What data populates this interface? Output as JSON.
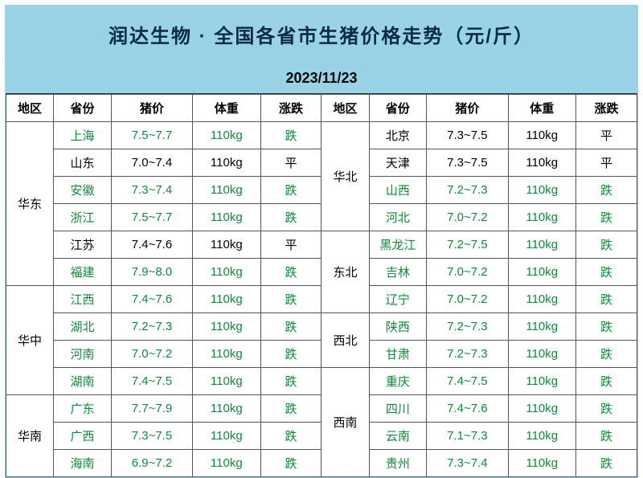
{
  "title": "润达生物 · 全国各省市生猪价格走势（元/斤）",
  "date": "2023/11/23",
  "headers": {
    "region": "地区",
    "province": "省份",
    "price": "猪价",
    "weight": "体重",
    "trend": "涨跌"
  },
  "colors": {
    "header_bg": "#9bd3e6",
    "border": "#555555",
    "fall": "#0d8a3a",
    "flat": "#000000",
    "title_text": "#0a2a4a",
    "cell_bg": "#ffffff"
  },
  "fontsize": {
    "title": 24,
    "date": 18,
    "cell": 15
  },
  "leftGroups": [
    {
      "region": "华东",
      "rows": [
        {
          "province": "上海",
          "price": "7.5~7.7",
          "weight": "110kg",
          "trend": "跌",
          "style": "fall"
        },
        {
          "province": "山东",
          "price": "7.0~7.4",
          "weight": "110kg",
          "trend": "平",
          "style": "flat"
        },
        {
          "province": "安徽",
          "price": "7.3~7.4",
          "weight": "110kg",
          "trend": "跌",
          "style": "fall"
        },
        {
          "province": "浙江",
          "price": "7.5~7.7",
          "weight": "110kg",
          "trend": "跌",
          "style": "fall"
        },
        {
          "province": "江苏",
          "price": "7.4~7.6",
          "weight": "110kg",
          "trend": "平",
          "style": "flat"
        },
        {
          "province": "福建",
          "price": "7.9~8.0",
          "weight": "110kg",
          "trend": "跌",
          "style": "fall"
        }
      ]
    },
    {
      "region": "华中",
      "rows": [
        {
          "province": "江西",
          "price": "7.4~7.6",
          "weight": "110kg",
          "trend": "跌",
          "style": "fall"
        },
        {
          "province": "湖北",
          "price": "7.2~7.3",
          "weight": "110kg",
          "trend": "跌",
          "style": "fall"
        },
        {
          "province": "河南",
          "price": "7.0~7.2",
          "weight": "110kg",
          "trend": "跌",
          "style": "fall"
        },
        {
          "province": "湖南",
          "price": "7.4~7.5",
          "weight": "110kg",
          "trend": "跌",
          "style": "fall"
        }
      ]
    },
    {
      "region": "华南",
      "rows": [
        {
          "province": "广东",
          "price": "7.7~7.9",
          "weight": "110kg",
          "trend": "跌",
          "style": "fall"
        },
        {
          "province": "广西",
          "price": "7.3~7.5",
          "weight": "110kg",
          "trend": "跌",
          "style": "fall"
        },
        {
          "province": "海南",
          "price": "6.9~7.2",
          "weight": "110kg",
          "trend": "跌",
          "style": "fall"
        }
      ]
    }
  ],
  "rightGroups": [
    {
      "region": "华北",
      "rows": [
        {
          "province": "北京",
          "price": "7.3~7.5",
          "weight": "110kg",
          "trend": "平",
          "style": "flat"
        },
        {
          "province": "天津",
          "price": "7.3~7.5",
          "weight": "110kg",
          "trend": "平",
          "style": "flat"
        },
        {
          "province": "山西",
          "price": "7.2~7.3",
          "weight": "110kg",
          "trend": "跌",
          "style": "fall"
        },
        {
          "province": "河北",
          "price": "7.0~7.2",
          "weight": "110kg",
          "trend": "跌",
          "style": "fall"
        }
      ]
    },
    {
      "region": "东北",
      "rows": [
        {
          "province": "黑龙江",
          "price": "7.2~7.5",
          "weight": "110kg",
          "trend": "跌",
          "style": "fall"
        },
        {
          "province": "吉林",
          "price": "7.0~7.2",
          "weight": "110kg",
          "trend": "跌",
          "style": "fall"
        },
        {
          "province": "辽宁",
          "price": "7.0~7.2",
          "weight": "110kg",
          "trend": "跌",
          "style": "fall"
        }
      ]
    },
    {
      "region": "西北",
      "rows": [
        {
          "province": "陕西",
          "price": "7.2~7.3",
          "weight": "110kg",
          "trend": "跌",
          "style": "fall"
        },
        {
          "province": "甘肃",
          "price": "7.2~7.3",
          "weight": "110kg",
          "trend": "跌",
          "style": "fall"
        }
      ]
    },
    {
      "region": "西南",
      "rows": [
        {
          "province": "重庆",
          "price": "7.4~7.5",
          "weight": "110kg",
          "trend": "跌",
          "style": "fall"
        },
        {
          "province": "四川",
          "price": "7.4~7.6",
          "weight": "110kg",
          "trend": "跌",
          "style": "fall"
        },
        {
          "province": "云南",
          "price": "7.1~7.3",
          "weight": "110kg",
          "trend": "跌",
          "style": "fall"
        },
        {
          "province": "贵州",
          "price": "7.3~7.4",
          "weight": "110kg",
          "trend": "跌",
          "style": "fall"
        }
      ]
    }
  ]
}
